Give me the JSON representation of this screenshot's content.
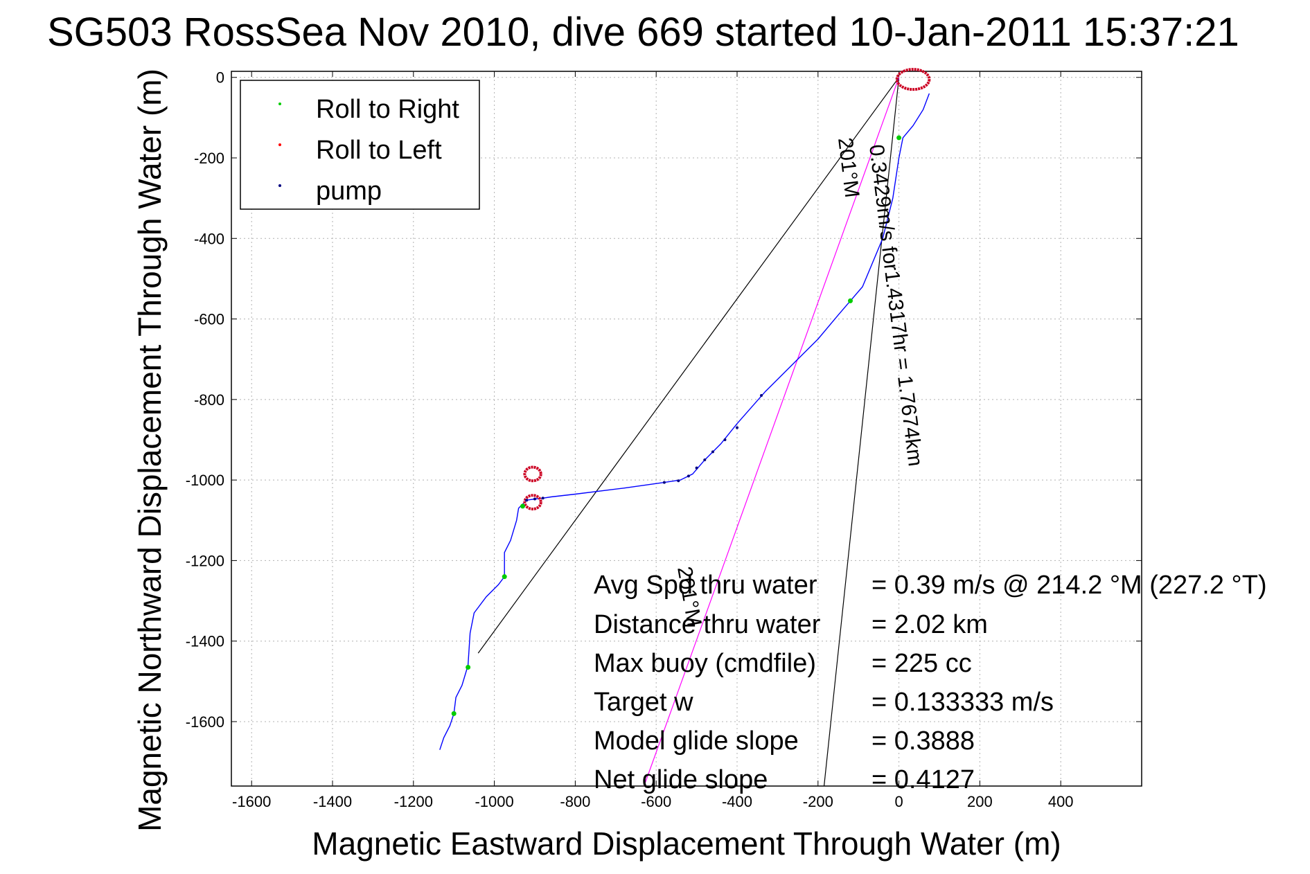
{
  "chart_data": {
    "type": "line",
    "title": "SG503 RossSea Nov 2010, dive 669 started 10-Jan-2011 15:37:21",
    "xlabel": "Magnetic Eastward Displacement Through Water (m)",
    "ylabel": "Magnetic Northward Displacement Through Water (m)",
    "xlim": [
      -1650,
      600
    ],
    "ylim": [
      -1760,
      15
    ],
    "xticks": [
      -1600,
      -1400,
      -1200,
      -1000,
      -800,
      -600,
      -400,
      -200,
      0,
      200,
      400
    ],
    "yticks": [
      0,
      -200,
      -400,
      -600,
      -800,
      -1000,
      -1200,
      -1400,
      -1600
    ],
    "grid": true,
    "legend_position": "top-left",
    "legend": [
      {
        "label": "Roll to Right",
        "color": "#00cc00"
      },
      {
        "label": "Roll to Left",
        "color": "#ff0000"
      },
      {
        "label": "pump",
        "color": "#000080"
      }
    ],
    "track": {
      "color": "#0000ff",
      "points": [
        [
          75,
          -40
        ],
        [
          60,
          -80
        ],
        [
          35,
          -120
        ],
        [
          10,
          -150
        ],
        [
          0,
          -200
        ],
        [
          -15,
          -300
        ],
        [
          -40,
          -400
        ],
        [
          -90,
          -520
        ],
        [
          -120,
          -555
        ],
        [
          -150,
          -590
        ],
        [
          -200,
          -650
        ],
        [
          -280,
          -730
        ],
        [
          -330,
          -780
        ],
        [
          -400,
          -860
        ],
        [
          -440,
          -910
        ],
        [
          -480,
          -950
        ],
        [
          -510,
          -985
        ],
        [
          -540,
          -1000
        ],
        [
          -580,
          -1006
        ],
        [
          -680,
          -1020
        ],
        [
          -800,
          -1035
        ],
        [
          -860,
          -1042
        ],
        [
          -880,
          -1045
        ],
        [
          -900,
          -1047
        ],
        [
          -920,
          -1050
        ],
        [
          -930,
          -1060
        ],
        [
          -940,
          -1070
        ],
        [
          -945,
          -1100
        ],
        [
          -960,
          -1150
        ],
        [
          -975,
          -1180
        ],
        [
          -975,
          -1240
        ],
        [
          -990,
          -1260
        ],
        [
          -1020,
          -1290
        ],
        [
          -1050,
          -1330
        ],
        [
          -1060,
          -1380
        ],
        [
          -1065,
          -1460
        ],
        [
          -1080,
          -1510
        ],
        [
          -1095,
          -1540
        ],
        [
          -1100,
          -1580
        ],
        [
          -1110,
          -1610
        ],
        [
          -1125,
          -1640
        ],
        [
          -1135,
          -1670
        ]
      ],
      "loops": [
        {
          "cx": 35,
          "cy": -5,
          "rx": 40,
          "ry": 25
        },
        {
          "cx": -905,
          "cy": -985,
          "rx": 20,
          "ry": 17
        },
        {
          "cx": -905,
          "cy": -1055,
          "rx": 20,
          "ry": 17
        }
      ]
    },
    "roll_right_points": [
      [
        0,
        -150
      ],
      [
        -120,
        -555
      ],
      [
        -930,
        -1065
      ],
      [
        -975,
        -1240
      ],
      [
        -1065,
        -1465
      ],
      [
        -1100,
        -1580
      ]
    ],
    "pump_points": [
      [
        -340,
        -790
      ],
      [
        -400,
        -870
      ],
      [
        -430,
        -900
      ],
      [
        -460,
        -930
      ],
      [
        -480,
        -950
      ],
      [
        -500,
        -970
      ],
      [
        -520,
        -990
      ],
      [
        -545,
        -1002
      ],
      [
        -580,
        -1006
      ],
      [
        -880,
        -1045
      ],
      [
        -900,
        -1047
      ],
      [
        -920,
        -1050
      ]
    ],
    "reference_lines": [
      {
        "from": [
          0,
          0
        ],
        "to": [
          -1040,
          -1430
        ],
        "color": "#000000"
      },
      {
        "from": [
          0,
          0
        ],
        "to": [
          -185,
          -1760
        ],
        "color": "#000000"
      },
      {
        "from": [
          0,
          0
        ],
        "to": [
          -630,
          -1760
        ],
        "color": "#ff00ff"
      }
    ],
    "annotations": {
      "speed_label": "0.3429m/s for1.4317hr = 1.7674km",
      "heading_label_top": "201°M",
      "heading_label_bottom": "201°M"
    },
    "stats": [
      {
        "label": "Avg Spd thru water",
        "value": "=  0.39 m/s @ 214.2  °M (227.2 °T)"
      },
      {
        "label": "Distance thru water",
        "value": "=  2.02 km"
      },
      {
        "label": "Max buoy (cmdfile)",
        "value": "= 225 cc"
      },
      {
        "label": "Target w",
        "value": "= 0.133333 m/s"
      },
      {
        "label": "Model glide slope",
        "value": "= 0.3888"
      },
      {
        "label": "Net glide slope",
        "value": "= 0.4127"
      }
    ]
  }
}
